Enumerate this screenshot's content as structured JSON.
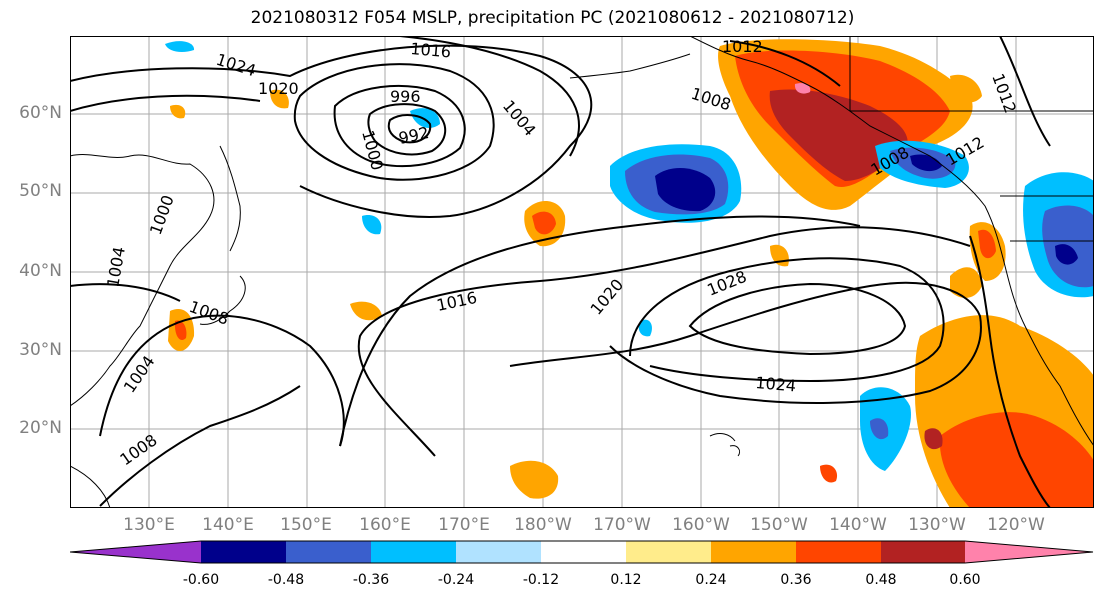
{
  "title": "2021080312 F054 MSLP, precipitation PC (2021080612 - 2021080712)",
  "latitude_labels": [
    "60°N",
    "50°N",
    "40°N",
    "30°N",
    "20°N"
  ],
  "longitude_labels": [
    "130°E",
    "140°E",
    "150°E",
    "160°E",
    "170°E",
    "180°W",
    "170°W",
    "160°W",
    "150°W",
    "140°W",
    "130°W",
    "120°W"
  ],
  "colorbar": {
    "colors": [
      "#9932CC",
      "#00008B",
      "#3A5FCD",
      "#00BFFF",
      "#B0E2FF",
      "#FFFFFF",
      "#FFEC8B",
      "#FFA500",
      "#FF4500",
      "#B22222",
      "#FF82AB"
    ],
    "tick_labels": [
      "-0.60",
      "-0.48",
      "-0.36",
      "-0.24",
      "-0.12",
      "0.12",
      "0.24",
      "0.36",
      "0.48",
      "0.60"
    ]
  },
  "isobar_labels": [
    "1024",
    "1016",
    "1012",
    "1020",
    "996",
    "992",
    "1004",
    "1000",
    "1008",
    "1012",
    "1016",
    "1020",
    "1028",
    "1024",
    "1008",
    "1004",
    "1008",
    "1000",
    "1004",
    "1008",
    "1012"
  ],
  "colors": {
    "land_outline": "#000000",
    "grid": "#aaaaaa",
    "axis_text": "#808080"
  }
}
